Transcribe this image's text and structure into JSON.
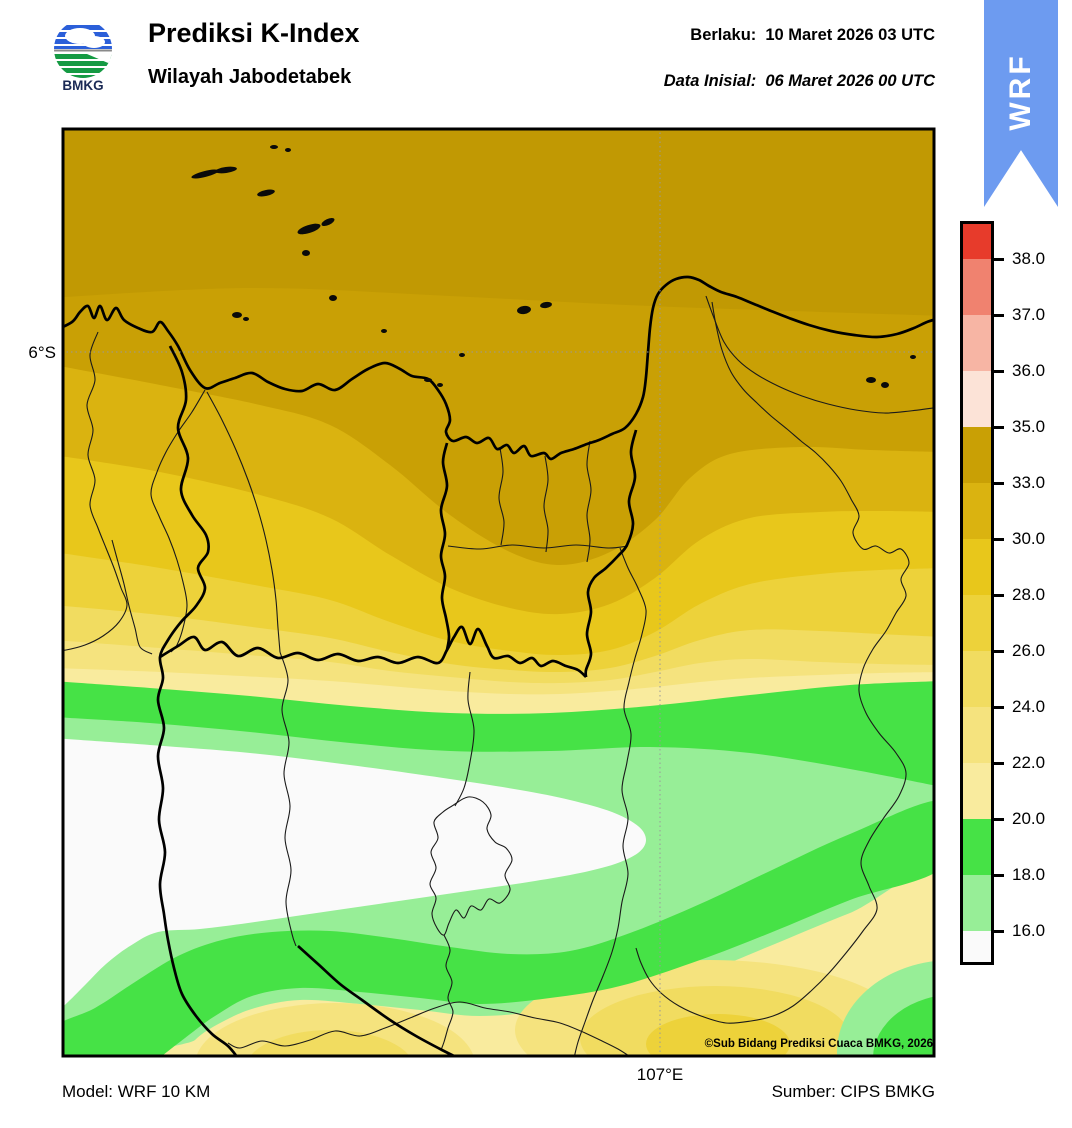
{
  "header": {
    "title": "Prediksi K-Index",
    "subtitle": "Wilayah Jabodetabek",
    "logo_text": "BMKG",
    "berlaku_label": "Berlaku:",
    "berlaku_value": "10 Maret 2026 03 UTC",
    "inisial_label": "Data Inisial:",
    "inisial_value": "06 Maret 2026 00 UTC"
  },
  "ribbon": {
    "label": "WRF",
    "color": "#6D9BF0"
  },
  "legend": {
    "tick_labels_top_to_bottom": [
      "38.0",
      "37.0",
      "36.0",
      "35.0",
      "33.0",
      "30.0",
      "28.0",
      "26.0",
      "24.0",
      "22.0",
      "20.0",
      "18.0",
      "16.0"
    ],
    "colors_top_to_bottom": [
      "#E73B2B",
      "#F0826F",
      "#F7B5A4",
      "#FCE3D7",
      "#C9A005",
      "#DAB310",
      "#E8C71B",
      "#EDD23A",
      "#F1DC60",
      "#F5E37E",
      "#F9EB9E",
      "#46E246",
      "#97EE97",
      "#FAFAFA"
    ]
  },
  "map": {
    "lat_label": "6°S",
    "lon_label": "107°E",
    "copyright": "©Sub Bidang Prediksi Cuaca BMKG, 2026"
  },
  "footer": {
    "model": "Model: WRF 10 KM",
    "source": "Sumber: CIPS BMKG"
  }
}
